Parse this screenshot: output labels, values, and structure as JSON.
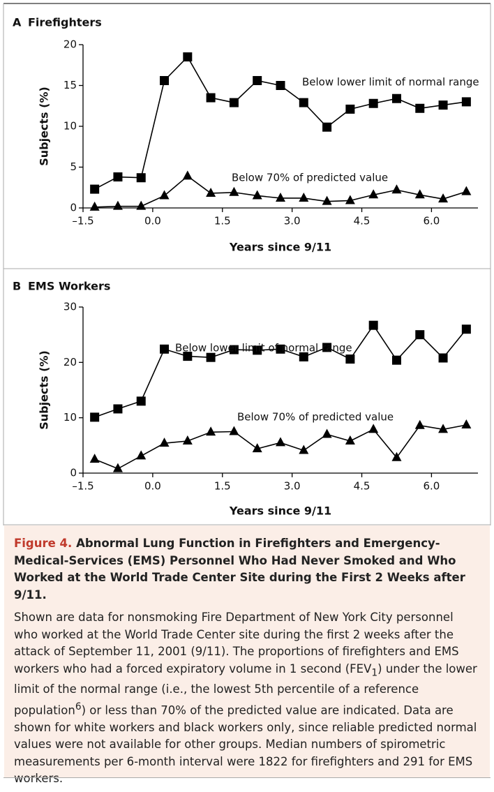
{
  "chart_data": [
    {
      "type": "line",
      "panel": "A",
      "title": "Firefighters",
      "xlabel": "Years since 9/11",
      "ylabel": "Subjects (%)",
      "x": [
        -1.25,
        -0.75,
        -0.25,
        0.25,
        0.75,
        1.25,
        1.75,
        2.25,
        2.75,
        3.25,
        3.75,
        4.25,
        4.75,
        5.25,
        5.75,
        6.25,
        6.75
      ],
      "xlim": [
        -1.5,
        7.0
      ],
      "xticks": [
        {
          "value": -1.5,
          "label": "–1.5"
        },
        {
          "value": 0,
          "label": "0.0"
        },
        1.5,
        {
          "value": 3,
          "label": "3.0"
        },
        4.5,
        {
          "value": 6,
          "label": "6.0"
        }
      ],
      "ylim": [
        0,
        20
      ],
      "yticks": [
        0,
        5,
        10,
        15,
        20
      ],
      "series": [
        {
          "name": "Below lower limit of normal range",
          "color": "#000000",
          "marker": "square",
          "values": [
            2.3,
            3.8,
            3.7,
            15.6,
            18.5,
            13.5,
            12.9,
            15.6,
            15.0,
            12.9,
            9.9,
            12.1,
            12.8,
            13.4,
            12.2,
            12.6,
            13.0
          ]
        },
        {
          "name": "Below 70% of predicted value",
          "color": "#000000",
          "marker": "triangle",
          "values": [
            0.1,
            0.2,
            0.2,
            1.5,
            3.9,
            1.8,
            1.9,
            1.5,
            1.2,
            1.2,
            0.8,
            0.9,
            1.6,
            2.2,
            1.6,
            1.1,
            2.0
          ]
        }
      ]
    },
    {
      "type": "line",
      "panel": "B",
      "title": "EMS Workers",
      "xlabel": "Years since 9/11",
      "ylabel": "Subjects (%)",
      "x": [
        -1.25,
        -0.75,
        -0.25,
        0.25,
        0.75,
        1.25,
        1.75,
        2.25,
        2.75,
        3.25,
        3.75,
        4.25,
        4.75,
        5.25,
        5.75,
        6.25,
        6.75
      ],
      "xlim": [
        -1.5,
        7.0
      ],
      "xticks": [
        {
          "value": -1.5,
          "label": "–1.5"
        },
        {
          "value": 0,
          "label": "0.0"
        },
        1.5,
        {
          "value": 3,
          "label": "3.0"
        },
        4.5,
        {
          "value": 6,
          "label": "6.0"
        }
      ],
      "ylim": [
        0,
        30
      ],
      "yticks": [
        0,
        10,
        20,
        30
      ],
      "series": [
        {
          "name": "Below lower limit of normal range",
          "color": "#000000",
          "marker": "square",
          "values": [
            10.1,
            11.6,
            13.0,
            22.4,
            21.1,
            20.9,
            22.3,
            22.2,
            22.4,
            21.0,
            22.7,
            20.6,
            26.7,
            20.4,
            25.0,
            20.8,
            26.0
          ]
        },
        {
          "name": "Below 70% of predicted value",
          "color": "#000000",
          "marker": "triangle",
          "values": [
            2.5,
            0.8,
            3.1,
            5.4,
            5.8,
            7.4,
            7.5,
            4.4,
            5.5,
            4.1,
            7.0,
            5.8,
            7.9,
            2.8,
            8.6,
            7.9,
            8.7
          ]
        }
      ]
    }
  ],
  "caption": {
    "label": "Figure 4.",
    "title": "Abnormal Lung Function in Firefighters and Emergency-Medical-Services (EMS) Personnel Who Had Never Smoked and Who Worked at the World Trade Center Site during the First 2 Weeks after 9/11.",
    "body": [
      {
        "text": "Shown are data for nonsmoking Fire Department of New York City personnel who worked at the World Trade Center site during the first 2 weeks after the attack of September 11, 2001 (9/11). The proportions of firefighters and EMS workers who had a forced expiratory volume in 1 second (FEV"
      },
      {
        "sub": "1"
      },
      {
        "text": ") under the lower limit of the normal range (i.e., the lowest 5th percentile of a reference population"
      },
      {
        "sup": "6"
      },
      {
        "text": ") or less than 70% of the predicted value are indicated. Data are shown for white workers and black workers only, since reliable predicted normal values were not available for other groups. Median numbers of spirometric measurements per 6-month interval were 1822 for firefighters and 291 for EMS workers."
      }
    ]
  }
}
